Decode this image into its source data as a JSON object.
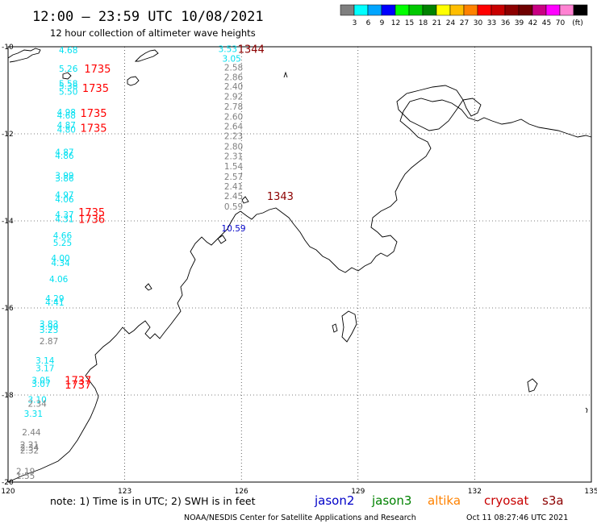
{
  "header": {
    "title": "12:00 – 23:59 UTC 10/08/2021",
    "subtitle": "12 hour collection of altimeter wave heights"
  },
  "color_scale": {
    "colors": [
      "#7f7f7f",
      "#00ffff",
      "#00a5ff",
      "#0000ff",
      "#00ff00",
      "#00c800",
      "#008200",
      "#ffff00",
      "#ffbe00",
      "#ff8200",
      "#ff0000",
      "#c80000",
      "#8c0000",
      "#6e0000",
      "#c80082",
      "#ff00ff",
      "#ff82d2",
      "#000000"
    ],
    "labels": [
      "3",
      "6",
      "9",
      "12",
      "15",
      "18",
      "21",
      "24",
      "27",
      "30",
      "33",
      "36",
      "39",
      "42",
      "45",
      "70"
    ],
    "unit": "(ft)"
  },
  "map": {
    "lat_range": [
      -20,
      -10
    ],
    "lon_range": [
      120,
      135
    ],
    "lat_labels": [
      "-10",
      "-12",
      "-14",
      "-16",
      "-18",
      "-20"
    ],
    "lon_labels": [
      "120",
      "123",
      "126",
      "129",
      "132",
      "135"
    ],
    "colors": {
      "cyan": "#00e0f0",
      "gray": "#808080",
      "red": "#ff0000",
      "darkred": "#8c0000",
      "blue": "#0000c8"
    },
    "track_values": [
      {
        "t": "4.68",
        "c": "cyan",
        "lon": 121.55,
        "lat": -10.07
      },
      {
        "t": "5.26",
        "c": "cyan",
        "lon": 121.55,
        "lat": -10.5
      },
      {
        "t": "5.58",
        "c": "cyan",
        "lon": 121.55,
        "lat": -10.84
      },
      {
        "t": "5.38",
        "c": "cyan",
        "lon": 121.55,
        "lat": -10.9
      },
      {
        "t": "5.50",
        "c": "cyan",
        "lon": 121.55,
        "lat": -11.03
      },
      {
        "t": "4.98",
        "c": "cyan",
        "lon": 121.5,
        "lat": -11.5
      },
      {
        "t": "4.68",
        "c": "cyan",
        "lon": 121.5,
        "lat": -11.57
      },
      {
        "t": "4.87",
        "c": "cyan",
        "lon": 121.5,
        "lat": -11.8
      },
      {
        "t": "4.80",
        "c": "cyan",
        "lon": 121.5,
        "lat": -11.9
      },
      {
        "t": "4.87",
        "c": "cyan",
        "lon": 121.45,
        "lat": -12.42
      },
      {
        "t": "4.86",
        "c": "cyan",
        "lon": 121.45,
        "lat": -12.5
      },
      {
        "t": "3.99",
        "c": "cyan",
        "lon": 121.45,
        "lat": -12.95
      },
      {
        "t": "3.86",
        "c": "cyan",
        "lon": 121.45,
        "lat": -13.02
      },
      {
        "t": "4.97",
        "c": "cyan",
        "lon": 121.45,
        "lat": -13.4
      },
      {
        "t": "4.06",
        "c": "cyan",
        "lon": 121.45,
        "lat": -13.5
      },
      {
        "t": "4.37",
        "c": "cyan",
        "lon": 121.45,
        "lat": -13.85
      },
      {
        "t": "4.31",
        "c": "cyan",
        "lon": 121.45,
        "lat": -13.95
      },
      {
        "t": "4.66",
        "c": "cyan",
        "lon": 121.4,
        "lat": -14.33
      },
      {
        "t": "5.25",
        "c": "cyan",
        "lon": 121.4,
        "lat": -14.5
      },
      {
        "t": "4.00",
        "c": "cyan",
        "lon": 121.35,
        "lat": -14.85
      },
      {
        "t": "4.34",
        "c": "cyan",
        "lon": 121.35,
        "lat": -14.96
      },
      {
        "t": "4.06",
        "c": "cyan",
        "lon": 121.3,
        "lat": -15.33
      },
      {
        "t": "4.29",
        "c": "cyan",
        "lon": 121.2,
        "lat": -15.78
      },
      {
        "t": "4.41",
        "c": "cyan",
        "lon": 121.2,
        "lat": -15.87
      },
      {
        "t": "3.83",
        "c": "cyan",
        "lon": 121.05,
        "lat": -16.36
      },
      {
        "t": "3.90",
        "c": "cyan",
        "lon": 121.05,
        "lat": -16.43
      },
      {
        "t": "3.23",
        "c": "cyan",
        "lon": 121.05,
        "lat": -16.5
      },
      {
        "t": "2.87",
        "c": "gray",
        "lon": 121.05,
        "lat": -16.76
      },
      {
        "t": "3.14",
        "c": "cyan",
        "lon": 120.95,
        "lat": -17.2
      },
      {
        "t": "3.17",
        "c": "cyan",
        "lon": 120.95,
        "lat": -17.38
      },
      {
        "t": "3.05",
        "c": "cyan",
        "lon": 120.85,
        "lat": -17.66
      },
      {
        "t": "3.07",
        "c": "cyan",
        "lon": 120.85,
        "lat": -17.74
      },
      {
        "t": "3.10",
        "c": "cyan",
        "lon": 120.75,
        "lat": -18.1
      },
      {
        "t": "2.34",
        "c": "gray",
        "lon": 120.75,
        "lat": -18.19
      },
      {
        "t": "3.31",
        "c": "cyan",
        "lon": 120.65,
        "lat": -18.43
      },
      {
        "t": "2.44",
        "c": "gray",
        "lon": 120.6,
        "lat": -18.85
      },
      {
        "t": "2.21",
        "c": "gray",
        "lon": 120.55,
        "lat": -19.14
      },
      {
        "t": "2.34",
        "c": "gray",
        "lon": 120.55,
        "lat": -19.2
      },
      {
        "t": "2.32",
        "c": "gray",
        "lon": 120.55,
        "lat": -19.27
      },
      {
        "t": "2.19",
        "c": "gray",
        "lon": 120.45,
        "lat": -19.75
      },
      {
        "t": "1.55",
        "c": "gray",
        "lon": 120.45,
        "lat": -19.85
      },
      {
        "t": "3.53",
        "c": "cyan",
        "lon": 125.65,
        "lat": -10.05
      },
      {
        "t": "3.05",
        "c": "cyan",
        "lon": 125.75,
        "lat": -10.27
      },
      {
        "t": "2.58",
        "c": "gray",
        "lon": 125.8,
        "lat": -10.47
      },
      {
        "t": "2.86",
        "c": "gray",
        "lon": 125.8,
        "lat": -10.69
      },
      {
        "t": "2.40",
        "c": "gray",
        "lon": 125.8,
        "lat": -10.91
      },
      {
        "t": "2.92",
        "c": "gray",
        "lon": 125.8,
        "lat": -11.14
      },
      {
        "t": "2.78",
        "c": "gray",
        "lon": 125.8,
        "lat": -11.37
      },
      {
        "t": "2.60",
        "c": "gray",
        "lon": 125.8,
        "lat": -11.6
      },
      {
        "t": "2.64",
        "c": "gray",
        "lon": 125.8,
        "lat": -11.82
      },
      {
        "t": "2.23",
        "c": "gray",
        "lon": 125.8,
        "lat": -12.05
      },
      {
        "t": "2.80",
        "c": "gray",
        "lon": 125.8,
        "lat": -12.29
      },
      {
        "t": "2.31",
        "c": "gray",
        "lon": 125.8,
        "lat": -12.51
      },
      {
        "t": "1.54",
        "c": "gray",
        "lon": 125.8,
        "lat": -12.74
      },
      {
        "t": "2.57",
        "c": "gray",
        "lon": 125.8,
        "lat": -12.98
      },
      {
        "t": "2.41",
        "c": "gray",
        "lon": 125.8,
        "lat": -13.2
      },
      {
        "t": "2.45",
        "c": "gray",
        "lon": 125.8,
        "lat": -13.43
      },
      {
        "t": "0.59",
        "c": "gray",
        "lon": 125.8,
        "lat": -13.67
      },
      {
        "t": "10.59",
        "c": "blue",
        "lon": 125.8,
        "lat": -14.17
      }
    ],
    "time_labels": [
      {
        "t": "1344",
        "c": "darkred",
        "lon": 126.25,
        "lat": -10.05
      },
      {
        "t": "1735",
        "c": "red",
        "lon": 122.3,
        "lat": -10.5
      },
      {
        "t": "1735",
        "c": "red",
        "lon": 122.25,
        "lat": -10.94
      },
      {
        "t": "1735",
        "c": "red",
        "lon": 122.2,
        "lat": -11.52
      },
      {
        "t": "1735",
        "c": "red",
        "lon": 122.2,
        "lat": -11.86
      },
      {
        "t": "1343",
        "c": "darkred",
        "lon": 127.0,
        "lat": -13.43
      },
      {
        "t": "1735",
        "c": "red",
        "lon": 122.15,
        "lat": -13.8
      },
      {
        "t": "1736",
        "c": "red",
        "lon": 122.15,
        "lat": -13.95
      },
      {
        "t": "1737",
        "c": "red",
        "lon": 121.8,
        "lat": -17.66
      },
      {
        "t": "1737",
        "c": "red",
        "lon": 121.8,
        "lat": -17.76
      }
    ]
  },
  "footer": {
    "note": "note:  1) Time is in UTC; 2) SWH is in feet",
    "satellites": [
      {
        "name": "jason2",
        "color": "#0000c8"
      },
      {
        "name": "jason3",
        "color": "#008200"
      },
      {
        "name": "altika",
        "color": "#ff8200"
      },
      {
        "name": "cryosat",
        "color": "#c80000"
      },
      {
        "name": "s3a",
        "color": "#8c0000"
      }
    ],
    "credit": "NOAA/NESDIS Center for Satellite Applications and Research",
    "timestamp": "Oct 11 08:27:46 UTC 2021"
  }
}
